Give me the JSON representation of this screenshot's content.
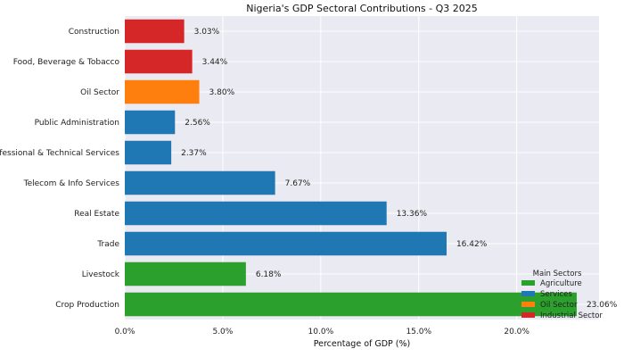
{
  "chart_data": {
    "type": "bar",
    "orientation": "horizontal",
    "title": "Nigeria's GDP Sectoral Contributions - Q3 2025",
    "xlabel": "Percentage of GDP (%)",
    "ylabel": "",
    "xlim": [
      0,
      24.2
    ],
    "xticks": [
      0,
      5,
      10,
      15,
      20
    ],
    "xtick_labels": [
      "0.0%",
      "5.0%",
      "10.0%",
      "15.0%",
      "20.0%"
    ],
    "grid": true,
    "categories": [
      "Crop Production",
      "Livestock",
      "Trade",
      "Real Estate",
      "Telecom & Info Services",
      "Professional & Technical Services",
      "Public Administration",
      "Oil Sector",
      "Food, Beverage & Tobacco",
      "Construction"
    ],
    "values": [
      23.06,
      6.18,
      16.42,
      13.36,
      7.67,
      2.37,
      2.56,
      3.8,
      3.44,
      3.03
    ],
    "value_labels": [
      "23.06%",
      "6.18%",
      "16.42%",
      "13.36%",
      "7.67%",
      "2.37%",
      "2.56%",
      "3.80%",
      "3.44%",
      "3.03%"
    ],
    "groups": [
      "Agriculture",
      "Agriculture",
      "Services",
      "Services",
      "Services",
      "Services",
      "Services",
      "Oil Sector",
      "Industrial Sector",
      "Industrial Sector"
    ],
    "legend": {
      "title": "Main Sectors",
      "placement": "bottom-right",
      "entries": [
        {
          "name": "Agriculture",
          "color": "#2ca02c"
        },
        {
          "name": "Services",
          "color": "#1f77b4"
        },
        {
          "name": "Oil Sector",
          "color": "#ff7f0e"
        },
        {
          "name": "Industrial Sector",
          "color": "#d62728"
        }
      ]
    },
    "colors": {
      "Agriculture": "#2ca02c",
      "Services": "#1f77b4",
      "Oil Sector": "#ff7f0e",
      "Industrial Sector": "#d62728",
      "plot_background": "#eaeaf2",
      "grid": "#ffffff"
    }
  }
}
